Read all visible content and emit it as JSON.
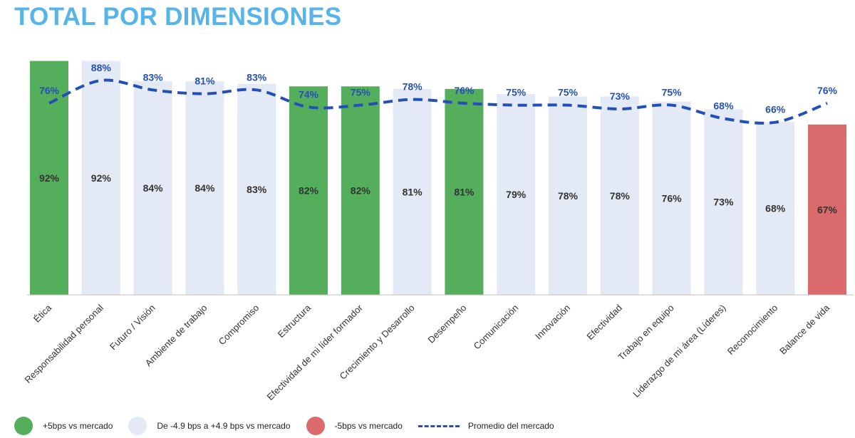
{
  "title": "TOTAL POR DIMENSIONES",
  "colors": {
    "above": "#55ae5c",
    "neutral": "#e3e9f5",
    "below": "#da6a6b",
    "market_line": "#2350b8",
    "title": "#57b4e8"
  },
  "legend": [
    {
      "key": "above",
      "label": "+5bps vs mercado"
    },
    {
      "key": "neutral",
      "label": "De -4.9 bps a +4.9 bps vs mercado"
    },
    {
      "key": "below",
      "label": "-5bps vs mercado"
    },
    {
      "key": "market_line",
      "label": "Promedio del mercado"
    }
  ],
  "chart_data": {
    "type": "bar",
    "title": "TOTAL POR DIMENSIONES",
    "categories": [
      "Ética",
      "Responsabilidad personal",
      "Futuro / Visión",
      "Ambiente de trabajo",
      "Compromiso",
      "Estructura",
      "Efectividad de mi líder formador",
      "Crecimiento y Desarrollo",
      "Desempeño",
      "Comunicación",
      "Innovación",
      "Efectividad",
      "Trabajo en equipo",
      "Liderazgo de mi área (Líderes)",
      "Reconocimiento",
      "Balance de vida"
    ],
    "series": [
      {
        "name": "",
        "type": "bar",
        "values": [
          92,
          92,
          84,
          84,
          83,
          82,
          82,
          81,
          81,
          79,
          78,
          78,
          76,
          73,
          68,
          67
        ],
        "labels": [
          "92%",
          "92%",
          "84%",
          "84%",
          "83%",
          "82%",
          "82%",
          "81%",
          "81%",
          "79%",
          "78%",
          "78%",
          "76%",
          "73%",
          "68%",
          "67%"
        ],
        "status": [
          "above",
          "neutral",
          "neutral",
          "neutral",
          "neutral",
          "above",
          "above",
          "neutral",
          "above",
          "neutral",
          "neutral",
          "neutral",
          "neutral",
          "neutral",
          "neutral",
          "below"
        ]
      },
      {
        "name": "Promedio del mercado",
        "type": "line",
        "style": "dashed",
        "values": [
          76,
          88,
          83,
          81,
          83,
          74,
          75,
          78,
          76,
          75,
          75,
          73,
          75,
          68,
          66,
          76
        ],
        "labels": [
          "76%",
          "88%",
          "83%",
          "81%",
          "83%",
          "74%",
          "75%",
          "78%",
          "76%",
          "75%",
          "75%",
          "73%",
          "75%",
          "68%",
          "66%",
          "76%"
        ]
      }
    ],
    "xlabel": "",
    "ylabel": "",
    "grid": false
  }
}
